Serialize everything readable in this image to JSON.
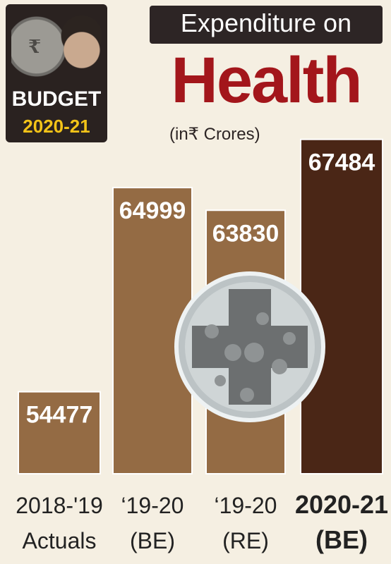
{
  "badge": {
    "title": "BUDGET",
    "year": "2020-21",
    "coin_mark": "₹"
  },
  "header": {
    "line1": "Expenditure on",
    "line2": "Health",
    "unit": "(in₹ Crores)"
  },
  "colors": {
    "bar_regular": "#946b44",
    "bar_highlight": "#4a2616",
    "title_accent": "#a3161b",
    "badge_year": "#f2c318"
  },
  "chart_data": {
    "type": "bar",
    "categories": [
      "2018-'19 Actuals",
      "'19-20 (BE)",
      "'19-20 (RE)",
      "2020-21 (BE)"
    ],
    "category_lines": [
      [
        "2018-'19",
        "Actuals"
      ],
      [
        "‘19-20",
        "(BE)"
      ],
      [
        "‘19-20",
        "(RE)"
      ],
      [
        "2020-21",
        "(BE)"
      ]
    ],
    "values": [
      54477,
      64999,
      63830,
      67484
    ],
    "value_labels": [
      "54477",
      "64999",
      "63830",
      "67484"
    ],
    "highlight_index": 3,
    "unit": "₹ Crores",
    "grid": false,
    "legend": "none"
  },
  "decoration": {
    "icon": "health-plus-icon"
  }
}
